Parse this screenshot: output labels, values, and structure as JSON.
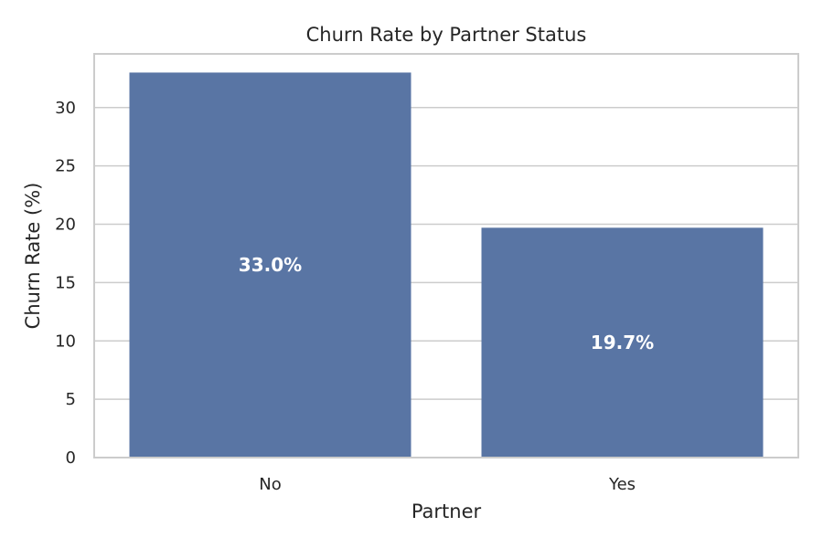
{
  "chart_data": {
    "type": "bar",
    "title": "Churn Rate by Partner Status",
    "xlabel": "Partner",
    "ylabel": "Churn Rate (%)",
    "categories": [
      "No",
      "Yes"
    ],
    "values": [
      33.0,
      19.7
    ],
    "data_labels": [
      "33.0%",
      "19.7%"
    ],
    "ylim": [
      0,
      34.6
    ],
    "yticks": [
      0,
      5,
      10,
      15,
      20,
      25,
      30
    ],
    "grid": "horizontal",
    "bar_color": "#5975a4",
    "grid_color": "#cccccc"
  }
}
